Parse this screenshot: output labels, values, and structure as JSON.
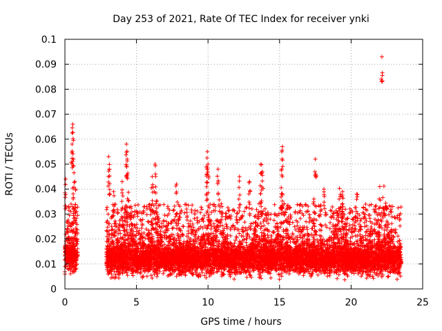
{
  "chart_data": {
    "type": "scatter",
    "title": "Day 253 of 2021, Rate Of TEC Index for receiver ynki",
    "xlabel": "GPS time / hours",
    "ylabel": "ROTI / TECUs",
    "xlim": [
      0,
      25
    ],
    "ylim": [
      0,
      0.1
    ],
    "xticks": [
      "0",
      "5",
      "10",
      "15",
      "20",
      "25"
    ],
    "yticks": [
      "0",
      "0.01",
      "0.02",
      "0.03",
      "0.04",
      "0.05",
      "0.06",
      "0.07",
      "0.08",
      "0.09",
      "0.1"
    ],
    "grid": true,
    "marker": "+",
    "color": "#ff0000",
    "series": [
      {
        "name": "ROTI",
        "segments": [
          {
            "x_start": 0.0,
            "x_end": 0.9,
            "base": 0.013,
            "spread": 0.006
          },
          {
            "x_start": 2.9,
            "x_end": 23.5,
            "base": 0.012,
            "spread": 0.006
          }
        ],
        "peaks": [
          {
            "x": 0.55,
            "y": 0.066
          },
          {
            "x": 0.5,
            "y": 0.058
          },
          {
            "x": 0.6,
            "y": 0.052
          },
          {
            "x": 0.05,
            "y": 0.044
          },
          {
            "x": 0.7,
            "y": 0.043
          },
          {
            "x": 3.05,
            "y": 0.053
          },
          {
            "x": 3.1,
            "y": 0.048
          },
          {
            "x": 3.4,
            "y": 0.039
          },
          {
            "x": 4.3,
            "y": 0.058
          },
          {
            "x": 4.35,
            "y": 0.052
          },
          {
            "x": 4.0,
            "y": 0.043
          },
          {
            "x": 6.3,
            "y": 0.05
          },
          {
            "x": 6.1,
            "y": 0.045
          },
          {
            "x": 7.8,
            "y": 0.042
          },
          {
            "x": 9.95,
            "y": 0.055
          },
          {
            "x": 10.0,
            "y": 0.05
          },
          {
            "x": 9.9,
            "y": 0.046
          },
          {
            "x": 10.7,
            "y": 0.048
          },
          {
            "x": 12.2,
            "y": 0.045
          },
          {
            "x": 12.9,
            "y": 0.043
          },
          {
            "x": 13.7,
            "y": 0.05
          },
          {
            "x": 13.8,
            "y": 0.047
          },
          {
            "x": 15.2,
            "y": 0.057
          },
          {
            "x": 15.15,
            "y": 0.048
          },
          {
            "x": 17.5,
            "y": 0.052
          },
          {
            "x": 17.4,
            "y": 0.036
          },
          {
            "x": 18.1,
            "y": 0.04
          },
          {
            "x": 19.4,
            "y": 0.039
          },
          {
            "x": 20.4,
            "y": 0.038
          },
          {
            "x": 22.0,
            "y": 0.041
          },
          {
            "x": 22.15,
            "y": 0.093
          },
          {
            "x": 22.8,
            "y": 0.033
          }
        ],
        "active_regions": [
          {
            "x": 0.5,
            "level": 0.03
          },
          {
            "x": 4.4,
            "level": 0.035
          },
          {
            "x": 6.3,
            "level": 0.03
          },
          {
            "x": 9.9,
            "level": 0.034
          },
          {
            "x": 10.8,
            "level": 0.03
          },
          {
            "x": 13.6,
            "level": 0.033
          },
          {
            "x": 15.2,
            "level": 0.03
          },
          {
            "x": 19.2,
            "level": 0.03
          },
          {
            "x": 22.3,
            "level": 0.03
          }
        ]
      }
    ]
  }
}
